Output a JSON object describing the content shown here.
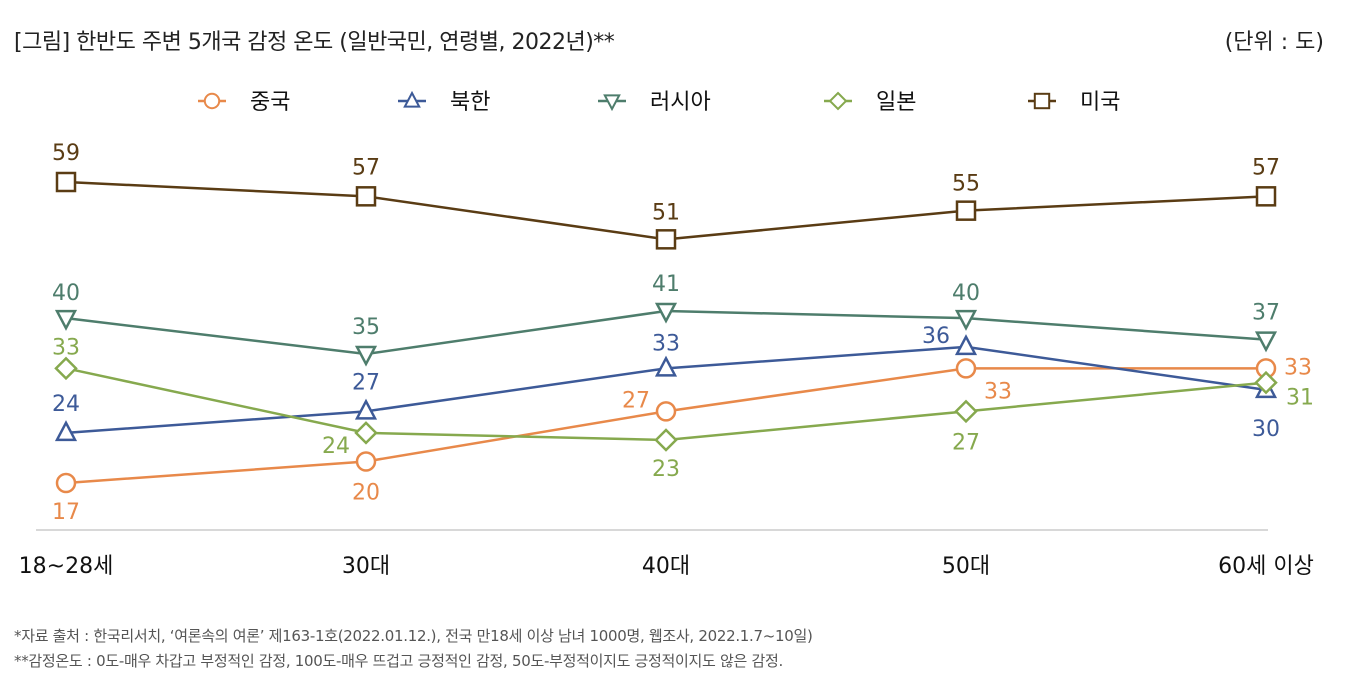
{
  "title": "[그림] 한반도 주변 5개국 감정 온도 (일반국민, 연령별, 2022년)**",
  "unit": "(단위 : 도)",
  "notes": [
    "*자료 출처 : 한국리서치, ‘여론속의 여론’ 제163-1호(2022.01.12.), 전국 만18세 이상 남녀 1000명, 웹조사, 2022.1.7~10일)",
    "**감정온도 : 0도-매우 차갑고 부정적인 감정, 100도-매우 뜨겁고 긍정적인 감정, 50도-부정적이지도 긍정적이지도 않은 감정."
  ],
  "chart_data": {
    "type": "line",
    "title": "한반도 주변 5개국 감정 온도 (일반국민, 연령별, 2022년)",
    "xlabel": "",
    "ylabel": "",
    "categories": [
      "18~28세",
      "30대",
      "40대",
      "50대",
      "60세 이상"
    ],
    "ylim": [
      10,
      62
    ],
    "legend_position": "top",
    "series": [
      {
        "name": "중국",
        "color": "#E8894A",
        "marker": "circle",
        "values": [
          17,
          20,
          27,
          33,
          33
        ]
      },
      {
        "name": "북한",
        "color": "#3D5A98",
        "marker": "triangle-up",
        "values": [
          24,
          27,
          33,
          36,
          30
        ]
      },
      {
        "name": "러시아",
        "color": "#4E7D6C",
        "marker": "triangle-down",
        "values": [
          40,
          35,
          41,
          40,
          37
        ]
      },
      {
        "name": "일본",
        "color": "#86A94E",
        "marker": "diamond",
        "values": [
          33,
          24,
          23,
          27,
          31
        ]
      },
      {
        "name": "미국",
        "color": "#5A3C14",
        "marker": "square",
        "values": [
          59,
          57,
          51,
          55,
          57
        ]
      }
    ]
  }
}
